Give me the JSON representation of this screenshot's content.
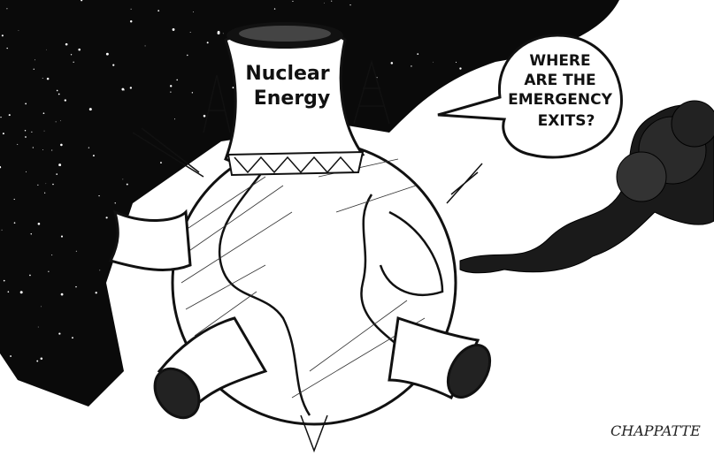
{
  "cartoon": {
    "tower_label": [
      "Nuclear",
      "Energy"
    ],
    "speech_bubble": [
      "WHERE",
      "ARE THE",
      "EMERGENCY",
      "EXITS?"
    ],
    "signature": "CHAPPATTE"
  }
}
